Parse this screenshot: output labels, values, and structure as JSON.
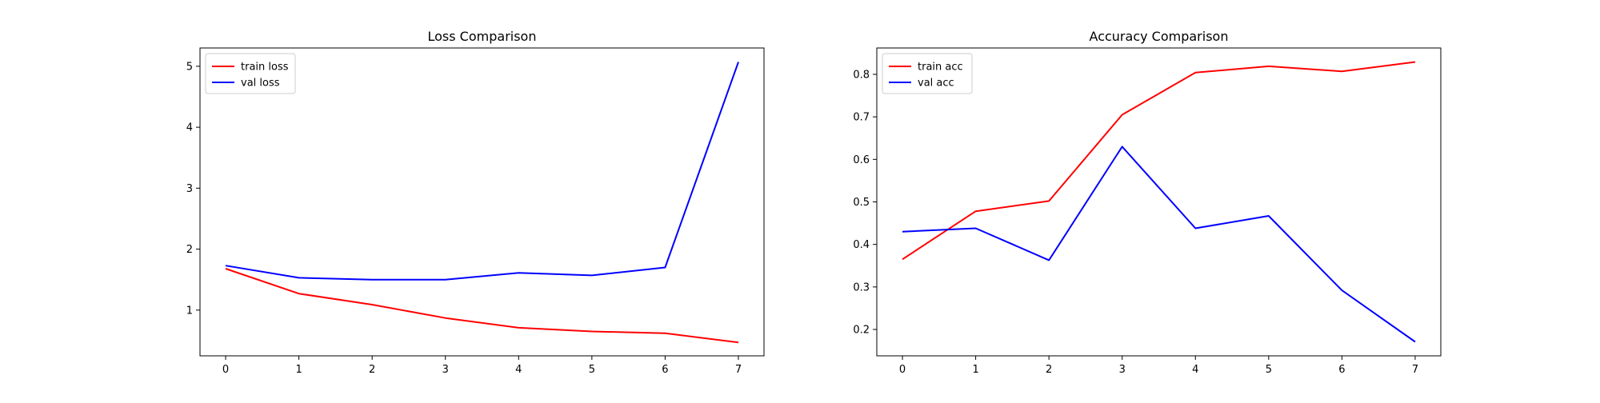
{
  "chart_data": [
    {
      "type": "line",
      "title": "Loss Comparison",
      "xlabel": "",
      "ylabel": "",
      "x": [
        0,
        1,
        2,
        3,
        4,
        5,
        6,
        7
      ],
      "xlim": [
        -0.35,
        7.35
      ],
      "ylim": [
        0.25,
        5.3
      ],
      "yticks": [
        1,
        2,
        3,
        4,
        5
      ],
      "xticks": [
        0,
        1,
        2,
        3,
        4,
        5,
        6,
        7
      ],
      "grid": false,
      "legend_position": "top-left",
      "series": [
        {
          "name": "train loss",
          "color": "#ff0000",
          "values": [
            1.68,
            1.27,
            1.09,
            0.87,
            0.71,
            0.65,
            0.62,
            0.47
          ]
        },
        {
          "name": "val loss",
          "color": "#0000ff",
          "values": [
            1.73,
            1.53,
            1.5,
            1.5,
            1.61,
            1.57,
            1.7,
            5.07
          ]
        }
      ]
    },
    {
      "type": "line",
      "title": "Accuracy Comparison",
      "xlabel": "",
      "ylabel": "",
      "x": [
        0,
        1,
        2,
        3,
        4,
        5,
        6,
        7
      ],
      "xlim": [
        -0.35,
        7.35
      ],
      "ylim": [
        0.138,
        0.862
      ],
      "yticks": [
        0.2,
        0.3,
        0.4,
        0.5,
        0.6,
        0.7,
        0.8
      ],
      "xticks": [
        0,
        1,
        2,
        3,
        4,
        5,
        6,
        7
      ],
      "grid": false,
      "legend_position": "top-left",
      "series": [
        {
          "name": "train acc",
          "color": "#ff0000",
          "values": [
            0.365,
            0.478,
            0.502,
            0.705,
            0.804,
            0.819,
            0.807,
            0.829
          ]
        },
        {
          "name": "val acc",
          "color": "#0000ff",
          "values": [
            0.43,
            0.438,
            0.363,
            0.63,
            0.438,
            0.467,
            0.292,
            0.171
          ]
        }
      ]
    }
  ]
}
